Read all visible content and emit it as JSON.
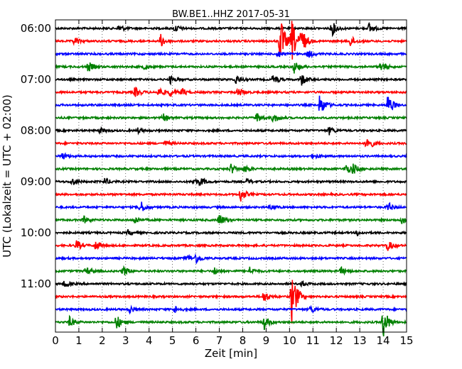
{
  "chart_data": {
    "type": "line",
    "title": "BW.BE1..HHZ 2017-05-31",
    "xlabel": "Zeit  [min]",
    "ylabel": "UTC (Lokalzeit = UTC + 02:00)",
    "xlim": [
      0,
      15
    ],
    "x_ticks": [
      "0",
      "1",
      "2",
      "3",
      "4",
      "5",
      "6",
      "7",
      "8",
      "9",
      "10",
      "11",
      "12",
      "13",
      "14",
      "15"
    ],
    "y_ticks": [
      "06:00",
      "07:00",
      "08:00",
      "09:00",
      "10:00",
      "11:00"
    ],
    "grid": "vertical dotted",
    "row_colors": [
      "#000000",
      "#ff0000",
      "#0000ff",
      "#008000"
    ],
    "rows": [
      {
        "start": "06:00",
        "events": [
          {
            "t": 2.7,
            "a": 0.3
          },
          {
            "t": 5.1,
            "a": 0.3
          },
          {
            "t": 11.8,
            "a": 0.6
          },
          {
            "t": 13.4,
            "a": 0.4
          }
        ]
      },
      {
        "start": "06:15",
        "events": [
          {
            "t": 0.8,
            "a": 0.3
          },
          {
            "t": 4.5,
            "a": 0.5
          },
          {
            "t": 9.6,
            "a": 2.0
          },
          {
            "t": 10.1,
            "a": 1.6
          },
          {
            "t": 10.5,
            "a": 1.0
          },
          {
            "t": 12.6,
            "a": 0.4
          }
        ]
      },
      {
        "start": "06:30",
        "events": [
          {
            "t": 9.5,
            "a": 0.3
          },
          {
            "t": 10.8,
            "a": 0.3
          }
        ]
      },
      {
        "start": "06:45",
        "events": [
          {
            "t": 1.4,
            "a": 0.4
          },
          {
            "t": 3.8,
            "a": 0.2
          },
          {
            "t": 10.2,
            "a": 0.5
          },
          {
            "t": 13.9,
            "a": 0.4
          }
        ]
      },
      {
        "start": "07:00",
        "events": [
          {
            "t": 4.9,
            "a": 0.3
          },
          {
            "t": 7.7,
            "a": 0.4
          },
          {
            "t": 9.3,
            "a": 0.4
          },
          {
            "t": 10.5,
            "a": 0.5
          }
        ]
      },
      {
        "start": "07:15",
        "events": [
          {
            "t": 3.4,
            "a": 0.4
          },
          {
            "t": 4.4,
            "a": 0.4
          },
          {
            "t": 4.9,
            "a": 0.3
          },
          {
            "t": 5.4,
            "a": 0.3
          },
          {
            "t": 7.8,
            "a": 0.4
          }
        ]
      },
      {
        "start": "07:30",
        "events": [
          {
            "t": 11.3,
            "a": 0.9
          },
          {
            "t": 14.2,
            "a": 0.9
          }
        ]
      },
      {
        "start": "07:45",
        "events": [
          {
            "t": 4.6,
            "a": 0.3
          },
          {
            "t": 8.6,
            "a": 0.4
          },
          {
            "t": 9.3,
            "a": 0.4
          }
        ]
      },
      {
        "start": "08:00",
        "events": [
          {
            "t": 1.9,
            "a": 0.2
          },
          {
            "t": 3.5,
            "a": 0.2
          },
          {
            "t": 11.7,
            "a": 0.3
          }
        ]
      },
      {
        "start": "08:15",
        "events": [
          {
            "t": 4.7,
            "a": 0.2
          },
          {
            "t": 13.3,
            "a": 0.7
          }
        ]
      },
      {
        "start": "08:30",
        "events": [
          {
            "t": 0.3,
            "a": 0.3
          },
          {
            "t": 11.0,
            "a": 0.2
          }
        ]
      },
      {
        "start": "08:45",
        "events": [
          {
            "t": 7.5,
            "a": 0.4
          },
          {
            "t": 8.1,
            "a": 0.3
          },
          {
            "t": 12.4,
            "a": 0.4
          },
          {
            "t": 12.7,
            "a": 0.4
          }
        ]
      },
      {
        "start": "09:00",
        "events": [
          {
            "t": 0.7,
            "a": 0.3
          },
          {
            "t": 2.1,
            "a": 0.3
          },
          {
            "t": 5.9,
            "a": 0.3
          },
          {
            "t": 6.2,
            "a": 0.3
          },
          {
            "t": 8.2,
            "a": 0.2
          }
        ]
      },
      {
        "start": "09:15",
        "events": [
          {
            "t": 7.9,
            "a": 0.6
          }
        ]
      },
      {
        "start": "09:30",
        "events": [
          {
            "t": 3.6,
            "a": 0.6
          },
          {
            "t": 9.2,
            "a": 0.2
          },
          {
            "t": 14.2,
            "a": 0.4
          }
        ]
      },
      {
        "start": "09:45",
        "events": [
          {
            "t": 1.2,
            "a": 0.3
          },
          {
            "t": 3.4,
            "a": 0.3
          },
          {
            "t": 7.0,
            "a": 0.5
          },
          {
            "t": 14.8,
            "a": 0.3
          }
        ]
      },
      {
        "start": "10:00",
        "events": [
          {
            "t": 3.1,
            "a": 0.2
          },
          {
            "t": 12.9,
            "a": 0.2
          }
        ]
      },
      {
        "start": "10:15",
        "events": [
          {
            "t": 0.9,
            "a": 0.4
          },
          {
            "t": 1.7,
            "a": 0.4
          },
          {
            "t": 14.2,
            "a": 0.4
          }
        ]
      },
      {
        "start": "10:30",
        "events": [
          {
            "t": 5.6,
            "a": 0.3
          },
          {
            "t": 6.0,
            "a": 0.4
          }
        ]
      },
      {
        "start": "10:45",
        "events": [
          {
            "t": 1.3,
            "a": 0.3
          },
          {
            "t": 2.9,
            "a": 0.4
          },
          {
            "t": 6.8,
            "a": 0.3
          },
          {
            "t": 8.3,
            "a": 0.3
          },
          {
            "t": 12.2,
            "a": 0.3
          }
        ]
      },
      {
        "start": "11:00",
        "events": [
          {
            "t": 0.4,
            "a": 0.3
          },
          {
            "t": 10.5,
            "a": 0.2
          }
        ]
      },
      {
        "start": "11:15",
        "events": [
          {
            "t": 8.9,
            "a": 0.5
          },
          {
            "t": 10.1,
            "a": 2.3
          }
        ]
      },
      {
        "start": "11:30",
        "events": [
          {
            "t": 3.2,
            "a": 0.3
          },
          {
            "t": 5.1,
            "a": 0.3
          },
          {
            "t": 10.9,
            "a": 0.3
          }
        ]
      },
      {
        "start": "11:45",
        "events": [
          {
            "t": 0.6,
            "a": 0.4
          },
          {
            "t": 2.6,
            "a": 0.6
          },
          {
            "t": 8.9,
            "a": 0.6
          },
          {
            "t": 14.0,
            "a": 1.3
          }
        ]
      }
    ]
  }
}
